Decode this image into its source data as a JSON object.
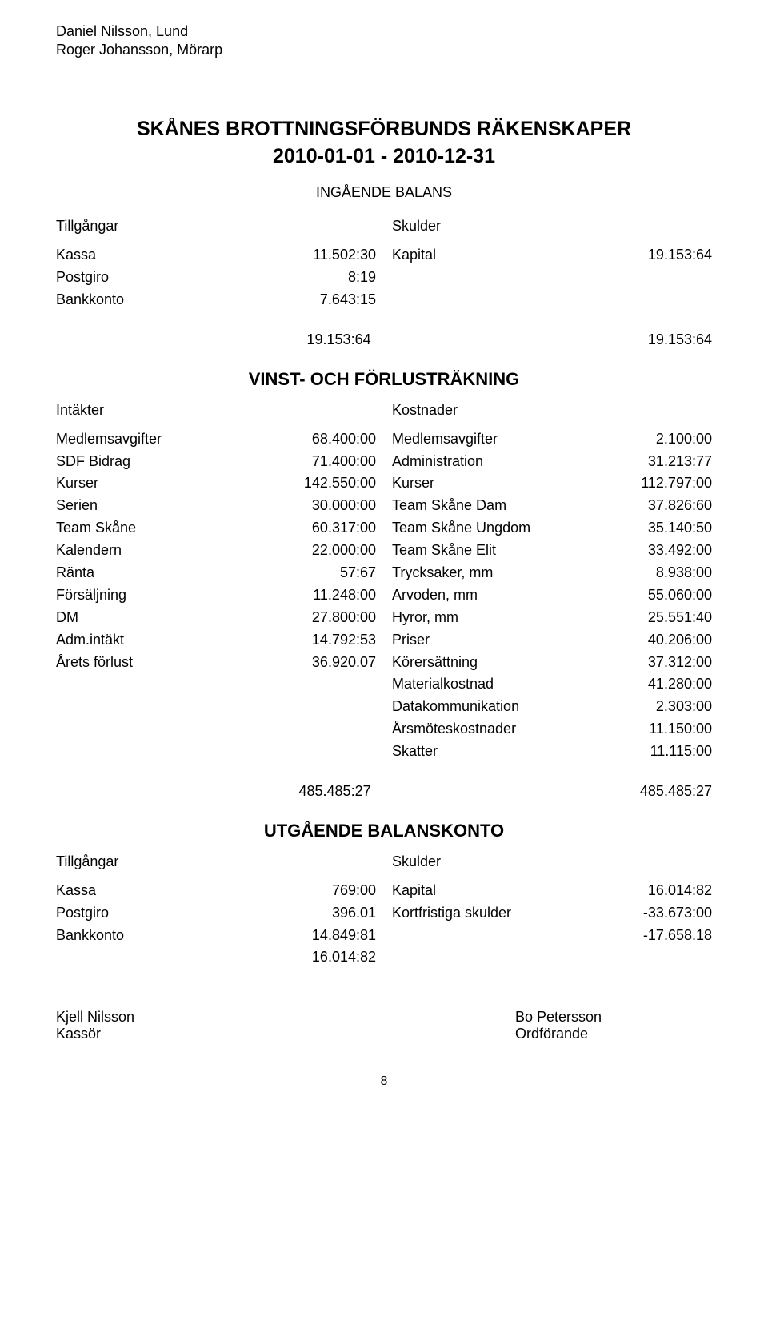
{
  "header": {
    "name1": "Daniel Nilsson, Lund",
    "name2": "Roger Johansson, Mörarp"
  },
  "title": {
    "line1": "SKÅNES BROTTNINGSFÖRBUNDS RÄKENSKAPER",
    "line2": "2010-01-01 - 2010-12-31"
  },
  "ingaende_balans_heading": "INGÅENDE BALANS",
  "ingaende_balans": {
    "left_header": "Tillgångar",
    "right_header": "Skulder",
    "left_rows": [
      {
        "label": "Kassa",
        "value": "11.502:30"
      },
      {
        "label": "Postgiro",
        "value": "8:19"
      },
      {
        "label": "Bankkonto",
        "value": "7.643:15"
      }
    ],
    "right_rows": [
      {
        "label": "Kapital",
        "value": "19.153:64"
      }
    ],
    "left_total": "19.153:64",
    "right_total": "19.153:64"
  },
  "vinst_heading": "VINST- OCH FÖRLUSTRÄKNING",
  "vinst": {
    "left_header": "Intäkter",
    "right_header": "Kostnader",
    "left_rows": [
      {
        "label": "Medlemsavgifter",
        "value": "68.400:00"
      },
      {
        "label": "SDF Bidrag",
        "value": "71.400:00"
      },
      {
        "label": "Kurser",
        "value": "142.550:00"
      },
      {
        "label": "Serien",
        "value": "30.000:00"
      },
      {
        "label": "Team Skåne",
        "value": "60.317:00"
      },
      {
        "label": "Kalendern",
        "value": "22.000:00"
      },
      {
        "label": "Ränta",
        "value": "57:67"
      },
      {
        "label": "Försäljning",
        "value": "11.248:00"
      },
      {
        "label": "DM",
        "value": "27.800:00"
      },
      {
        "label": "Adm.intäkt",
        "value": "14.792:53"
      },
      {
        "label": "Årets förlust",
        "value": "36.920.07"
      }
    ],
    "right_rows": [
      {
        "label": "Medlemsavgifter",
        "value": "2.100:00"
      },
      {
        "label": "Administration",
        "value": "31.213:77"
      },
      {
        "label": "Kurser",
        "value": "112.797:00"
      },
      {
        "label": "Team Skåne Dam",
        "value": "37.826:60"
      },
      {
        "label": "Team Skåne Ungdom",
        "value": "35.140:50"
      },
      {
        "label": "Team Skåne Elit",
        "value": "33.492:00"
      },
      {
        "label": "Trycksaker, mm",
        "value": "8.938:00"
      },
      {
        "label": "Arvoden, mm",
        "value": "55.060:00"
      },
      {
        "label": "Hyror, mm",
        "value": "25.551:40"
      },
      {
        "label": "Priser",
        "value": "40.206:00"
      },
      {
        "label": "Körersättning",
        "value": "37.312:00"
      },
      {
        "label": "Materialkostnad",
        "value": "41.280:00"
      },
      {
        "label": "Datakommunikation",
        "value": "2.303:00"
      },
      {
        "label": "Årsmöteskostnader",
        "value": "11.150:00"
      },
      {
        "label": "Skatter",
        "value": "11.115:00"
      }
    ],
    "left_total": "485.485:27",
    "right_total": "485.485:27"
  },
  "utgaende_heading": "UTGÅENDE BALANSKONTO",
  "utgaende": {
    "left_header": "Tillgångar",
    "right_header": "Skulder",
    "left_rows": [
      {
        "label": "Kassa",
        "value": "769:00"
      },
      {
        "label": "Postgiro",
        "value": "396.01"
      },
      {
        "label": "Bankkonto",
        "value": "14.849:81"
      },
      {
        "label": "",
        "value": "16.014:82"
      }
    ],
    "right_rows": [
      {
        "label": "Kapital",
        "value": "16.014:82"
      },
      {
        "label": "Kortfristiga skulder",
        "value": "-33.673:00"
      },
      {
        "label": "",
        "value": ""
      },
      {
        "label": "",
        "value": "-17.658.18"
      }
    ]
  },
  "signatures": {
    "left_name": "Kjell Nilsson",
    "left_title": "Kassör",
    "right_name": "Bo Petersson",
    "right_title": "Ordförande"
  },
  "page_number": "8"
}
